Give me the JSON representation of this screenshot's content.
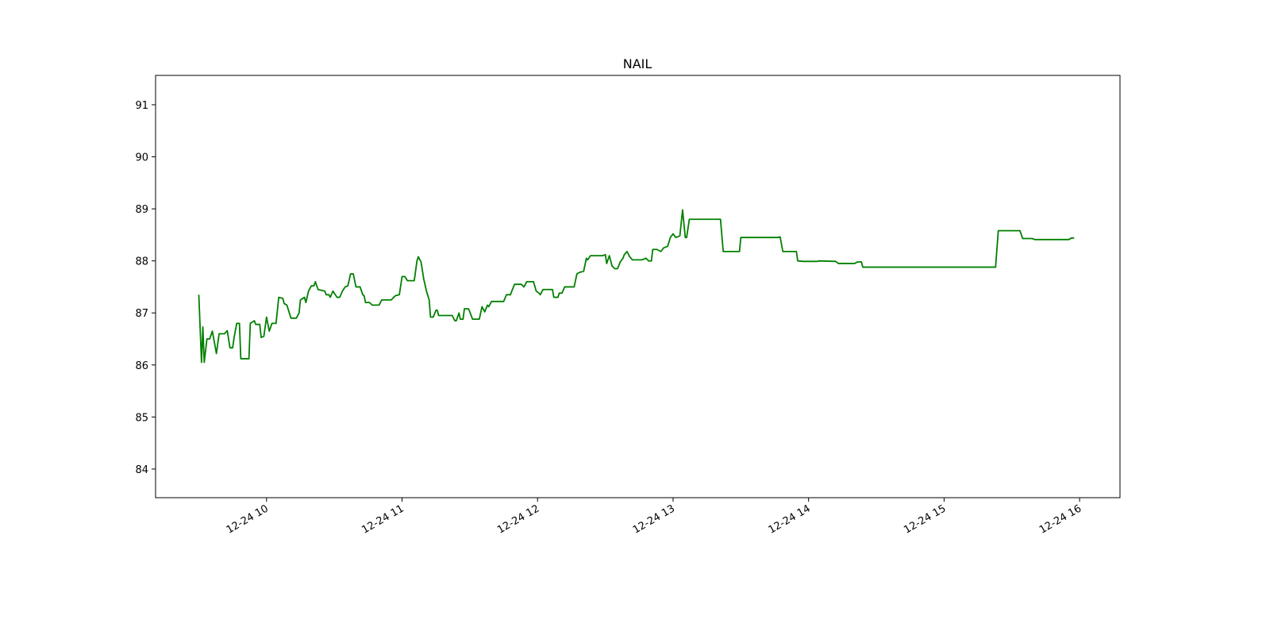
{
  "chart_data": {
    "type": "line",
    "title": "NAIL",
    "color": "#008000",
    "x": [
      9.5,
      9.52,
      9.53,
      9.54,
      9.56,
      9.58,
      9.6,
      9.63,
      9.65,
      9.69,
      9.71,
      9.73,
      9.75,
      9.76,
      9.78,
      9.8,
      9.81,
      9.87,
      9.88,
      9.91,
      9.92,
      9.95,
      9.96,
      9.98,
      10.0,
      10.02,
      10.04,
      10.07,
      10.09,
      10.12,
      10.13,
      10.15,
      10.18,
      10.22,
      10.24,
      10.25,
      10.28,
      10.29,
      10.31,
      10.33,
      10.35,
      10.36,
      10.38,
      10.43,
      10.44,
      10.46,
      10.47,
      10.49,
      10.52,
      10.54,
      10.56,
      10.58,
      10.6,
      10.62,
      10.64,
      10.66,
      10.69,
      10.71,
      10.72,
      10.73,
      10.76,
      10.78,
      10.83,
      10.85,
      10.92,
      10.95,
      10.98,
      11.0,
      11.02,
      11.04,
      11.09,
      11.11,
      11.12,
      11.14,
      11.16,
      11.18,
      11.2,
      11.21,
      11.23,
      11.25,
      11.26,
      11.27,
      11.37,
      11.39,
      11.4,
      11.42,
      11.43,
      11.45,
      11.46,
      11.49,
      11.5,
      11.52,
      11.57,
      11.59,
      11.61,
      11.63,
      11.64,
      11.66,
      11.75,
      11.77,
      11.8,
      11.81,
      11.83,
      11.88,
      11.9,
      11.92,
      11.97,
      11.99,
      12.01,
      12.02,
      12.04,
      12.11,
      12.12,
      12.15,
      12.16,
      12.18,
      12.2,
      12.27,
      12.29,
      12.31,
      12.34,
      12.36,
      12.37,
      12.39,
      12.48,
      12.5,
      12.51,
      12.53,
      12.55,
      12.57,
      12.59,
      12.61,
      12.63,
      12.64,
      12.66,
      12.68,
      12.7,
      12.77,
      12.8,
      12.82,
      12.84,
      12.85,
      12.88,
      12.91,
      12.93,
      12.96,
      12.98,
      13.0,
      13.02,
      13.05,
      13.07,
      13.09,
      13.1,
      13.12,
      13.35,
      13.37,
      13.49,
      13.5,
      13.77,
      13.79,
      13.81,
      13.91,
      13.92,
      13.96,
      14.06,
      14.08,
      14.2,
      14.22,
      14.34,
      14.36,
      14.39,
      14.4,
      15.38,
      15.4,
      15.56,
      15.58,
      15.65,
      15.67,
      15.92,
      15.94,
      15.96
    ],
    "values": [
      87.35,
      86.05,
      86.73,
      86.05,
      86.5,
      86.5,
      86.65,
      86.22,
      86.6,
      86.6,
      86.66,
      86.33,
      86.33,
      86.52,
      86.8,
      86.8,
      86.12,
      86.12,
      86.8,
      86.85,
      86.78,
      86.78,
      86.53,
      86.55,
      86.92,
      86.65,
      86.8,
      86.8,
      87.3,
      87.28,
      87.18,
      87.15,
      86.9,
      86.9,
      87.0,
      87.25,
      87.3,
      87.2,
      87.42,
      87.52,
      87.52,
      87.6,
      87.45,
      87.42,
      87.35,
      87.35,
      87.3,
      87.42,
      87.3,
      87.3,
      87.42,
      87.5,
      87.52,
      87.75,
      87.75,
      87.5,
      87.5,
      87.35,
      87.33,
      87.2,
      87.2,
      87.15,
      87.15,
      87.25,
      87.25,
      87.33,
      87.35,
      87.7,
      87.7,
      87.62,
      87.62,
      88.0,
      88.08,
      87.98,
      87.65,
      87.42,
      87.25,
      86.92,
      86.92,
      87.05,
      87.05,
      86.95,
      86.95,
      86.85,
      86.85,
      87.0,
      86.88,
      86.88,
      87.08,
      87.08,
      87.02,
      86.88,
      86.88,
      87.12,
      87.02,
      87.15,
      87.12,
      87.22,
      87.22,
      87.35,
      87.35,
      87.42,
      87.55,
      87.55,
      87.5,
      87.6,
      87.6,
      87.42,
      87.38,
      87.35,
      87.45,
      87.45,
      87.3,
      87.3,
      87.38,
      87.38,
      87.5,
      87.5,
      87.75,
      87.78,
      87.8,
      88.05,
      88.02,
      88.1,
      88.1,
      88.12,
      87.95,
      88.1,
      87.9,
      87.85,
      87.85,
      87.98,
      88.05,
      88.12,
      88.18,
      88.08,
      88.02,
      88.02,
      88.05,
      88.0,
      88.0,
      88.22,
      88.22,
      88.18,
      88.25,
      88.28,
      88.45,
      88.52,
      88.45,
      88.48,
      88.98,
      88.45,
      88.45,
      88.8,
      88.8,
      88.18,
      88.18,
      88.45,
      88.45,
      88.46,
      88.18,
      88.18,
      88.0,
      87.99,
      87.99,
      88.0,
      87.99,
      87.95,
      87.95,
      87.98,
      87.98,
      87.88,
      87.88,
      88.58,
      88.58,
      88.43,
      88.43,
      88.41,
      88.41,
      88.44,
      88.44
    ],
    "xlim": [
      9.181,
      16.298
    ],
    "xticks": [
      {
        "value": 10,
        "label": "12-24 10"
      },
      {
        "value": 11,
        "label": "12-24 11"
      },
      {
        "value": 12,
        "label": "12-24 12"
      },
      {
        "value": 13,
        "label": "12-24 13"
      },
      {
        "value": 14,
        "label": "12-24 14"
      },
      {
        "value": 15,
        "label": "12-24 15"
      },
      {
        "value": 16,
        "label": "12-24 16"
      }
    ],
    "ylim": [
      83.45,
      91.564
    ],
    "yticks": [
      84,
      85,
      86,
      87,
      88,
      89,
      90,
      91
    ]
  }
}
